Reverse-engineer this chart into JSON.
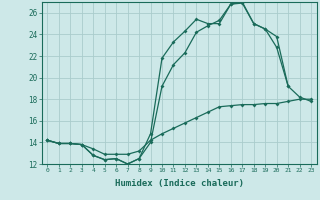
{
  "title": "",
  "xlabel": "Humidex (Indice chaleur)",
  "bg_color": "#cde8e8",
  "grid_color": "#aacccc",
  "line_color": "#1a6b5a",
  "xlim": [
    -0.5,
    23.5
  ],
  "ylim": [
    12,
    27
  ],
  "xticks": [
    0,
    1,
    2,
    3,
    4,
    5,
    6,
    7,
    8,
    9,
    10,
    11,
    12,
    13,
    14,
    15,
    16,
    17,
    18,
    19,
    20,
    21,
    22,
    23
  ],
  "yticks": [
    12,
    14,
    16,
    18,
    20,
    22,
    24,
    26
  ],
  "line1_x": [
    0,
    1,
    2,
    3,
    4,
    5,
    6,
    7,
    8,
    9,
    10,
    11,
    12,
    13,
    14,
    15,
    16,
    17,
    18,
    19,
    20,
    21
  ],
  "line1_y": [
    14.2,
    13.9,
    13.9,
    13.8,
    12.8,
    12.4,
    12.5,
    12.0,
    12.5,
    14.8,
    21.8,
    23.3,
    24.3,
    25.4,
    25.0,
    25.0,
    26.8,
    27.0,
    25.0,
    24.5,
    23.8,
    19.2
  ],
  "line2_x": [
    0,
    1,
    2,
    3,
    4,
    5,
    6,
    7,
    8,
    9,
    10,
    11,
    12,
    13,
    14,
    15,
    16,
    17,
    18,
    19,
    20,
    21,
    22,
    23
  ],
  "line2_y": [
    14.2,
    13.9,
    13.9,
    13.8,
    12.8,
    12.4,
    12.5,
    12.0,
    12.5,
    14.0,
    19.2,
    21.2,
    22.3,
    24.2,
    24.8,
    25.3,
    26.8,
    26.9,
    25.0,
    24.5,
    22.8,
    19.2,
    18.2,
    17.8
  ],
  "line3_x": [
    0,
    1,
    2,
    3,
    4,
    5,
    6,
    7,
    8,
    9,
    10,
    11,
    12,
    13,
    14,
    15,
    16,
    17,
    18,
    19,
    20,
    21,
    22,
    23
  ],
  "line3_y": [
    14.2,
    13.9,
    13.9,
    13.8,
    13.4,
    12.9,
    12.9,
    12.9,
    13.2,
    14.2,
    14.8,
    15.3,
    15.8,
    16.3,
    16.8,
    17.3,
    17.4,
    17.5,
    17.5,
    17.6,
    17.6,
    17.8,
    18.0,
    18.0
  ]
}
